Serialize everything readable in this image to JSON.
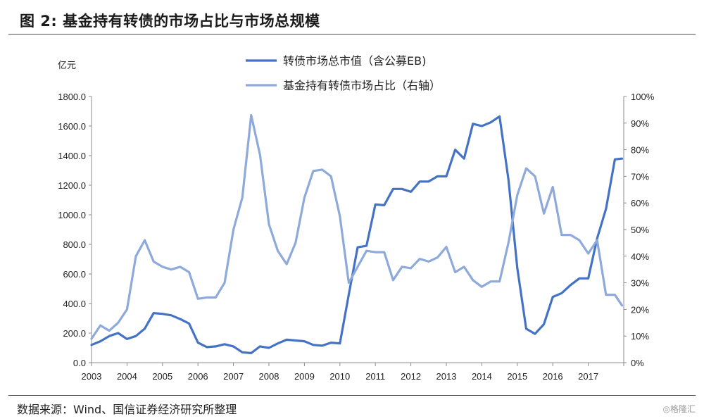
{
  "header": {
    "title": "图 2:  基金持有转债的市场占比与市场总规模"
  },
  "footer": {
    "source": "数据来源：Wind、国信证券经济研究所整理",
    "watermark": "◎格隆汇"
  },
  "chart_data": {
    "type": "line",
    "left_axis": {
      "unit": "亿元",
      "ylim": [
        0,
        1800
      ],
      "ticks": [
        "0.0",
        "200.0",
        "400.0",
        "600.0",
        "800.0",
        "1000.0",
        "1200.0",
        "1400.0",
        "1600.0",
        "1800.0"
      ]
    },
    "right_axis": {
      "ylim": [
        0,
        100
      ],
      "ticks": [
        "0%",
        "10%",
        "20%",
        "30%",
        "40%",
        "50%",
        "60%",
        "70%",
        "80%",
        "90%",
        "100%"
      ]
    },
    "x_axis": {
      "xlim": [
        2003,
        2018
      ],
      "ticks": [
        "2003",
        "2004",
        "2005",
        "2006",
        "2007",
        "2008",
        "2009",
        "2010",
        "2011",
        "2012",
        "2013",
        "2014",
        "2015",
        "2016",
        "2017"
      ]
    },
    "grid": false,
    "legend_position": "top-center",
    "series": [
      {
        "name": "转债市场总市值（含公募EB)",
        "axis": "left",
        "color": "#4472c4",
        "x": [
          2003.0,
          2003.25,
          2003.5,
          2003.75,
          2004.0,
          2004.25,
          2004.5,
          2004.75,
          2005.0,
          2005.25,
          2005.5,
          2005.75,
          2006.0,
          2006.25,
          2006.5,
          2006.75,
          2007.0,
          2007.25,
          2007.5,
          2007.75,
          2008.0,
          2008.25,
          2008.5,
          2008.75,
          2009.0,
          2009.25,
          2009.5,
          2009.75,
          2010.0,
          2010.25,
          2010.5,
          2010.75,
          2011.0,
          2011.25,
          2011.5,
          2011.75,
          2012.0,
          2012.25,
          2012.5,
          2012.75,
          2013.0,
          2013.25,
          2013.5,
          2013.75,
          2014.0,
          2014.25,
          2014.5,
          2014.75,
          2015.0,
          2015.25,
          2015.5,
          2015.75,
          2016.0,
          2016.25,
          2016.5,
          2016.75,
          2017.0,
          2017.25,
          2017.5,
          2017.75,
          2017.95
        ],
        "values": [
          120,
          145,
          180,
          200,
          160,
          180,
          230,
          335,
          330,
          320,
          295,
          265,
          135,
          105,
          110,
          125,
          110,
          70,
          65,
          110,
          100,
          130,
          155,
          150,
          145,
          120,
          115,
          135,
          130,
          460,
          780,
          790,
          1070,
          1065,
          1175,
          1175,
          1155,
          1225,
          1225,
          1260,
          1260,
          1440,
          1380,
          1615,
          1600,
          1625,
          1665,
          1240,
          640,
          230,
          195,
          260,
          445,
          470,
          525,
          570,
          570,
          840,
          1040,
          1375,
          1380
        ]
      },
      {
        "name": "基金持有转债市场占比（右轴）",
        "axis": "right",
        "color": "#8eaadb",
        "x": [
          2003.0,
          2003.25,
          2003.5,
          2003.75,
          2004.0,
          2004.25,
          2004.5,
          2004.75,
          2005.0,
          2005.25,
          2005.5,
          2005.75,
          2006.0,
          2006.25,
          2006.5,
          2006.75,
          2007.0,
          2007.25,
          2007.5,
          2007.75,
          2008.0,
          2008.25,
          2008.5,
          2008.75,
          2009.0,
          2009.25,
          2009.5,
          2009.75,
          2010.0,
          2010.25,
          2010.5,
          2010.75,
          2011.0,
          2011.25,
          2011.5,
          2011.75,
          2012.0,
          2012.25,
          2012.5,
          2012.75,
          2013.0,
          2013.25,
          2013.5,
          2013.75,
          2014.0,
          2014.25,
          2014.5,
          2014.75,
          2015.0,
          2015.25,
          2015.5,
          2015.75,
          2016.0,
          2016.25,
          2016.5,
          2016.75,
          2017.0,
          2017.25,
          2017.5,
          2017.75,
          2017.95
        ],
        "values": [
          9,
          14,
          12,
          15,
          20,
          40,
          46,
          38,
          36,
          35,
          36,
          34,
          24,
          24.5,
          24.5,
          30,
          50,
          62,
          93,
          78,
          52,
          42,
          37,
          45,
          62,
          72,
          72.5,
          70,
          55,
          30,
          36,
          42,
          41.5,
          41.5,
          31,
          36,
          35.5,
          39,
          38,
          39.5,
          43.5,
          34,
          36,
          31,
          28.5,
          30.5,
          30.5,
          45,
          63,
          73,
          70,
          56,
          66,
          48,
          48,
          46,
          41,
          46,
          25.5,
          25.5,
          21.5
        ]
      }
    ]
  }
}
